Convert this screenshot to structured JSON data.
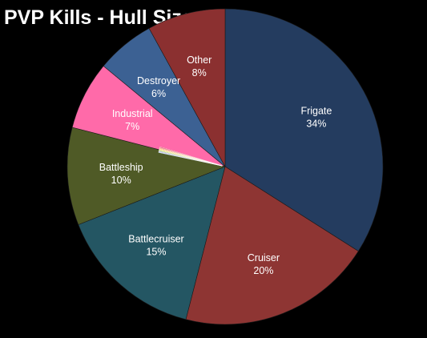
{
  "chart_data": {
    "type": "pie",
    "title": "PVP Kills - Hull Size",
    "categories": [
      "Frigate",
      "Cruiser",
      "Battlecruiser",
      "Battleship",
      "Industrial",
      "Destroyer",
      "Other"
    ],
    "values": [
      34,
      20,
      15,
      10,
      7,
      6,
      8
    ],
    "value_labels": [
      "34%",
      "20%",
      "15%",
      "10%",
      "7%",
      "6%",
      "8%"
    ],
    "colors": [
      "#243c5f",
      "#8e3533",
      "#245663",
      "#4f5a26",
      "#ff6aa9",
      "#3c6193",
      "#8b3030"
    ],
    "minor_slices_colors": [
      "#7fd3f2",
      "#a86bd8",
      "#6fb84a",
      "#c8e03a",
      "#ffd23a",
      "#ff9d2a",
      "#e8534a",
      "#c8202a"
    ],
    "start_angle": "top",
    "direction": "clockwise",
    "legend": "none",
    "labels_on_slices": true
  }
}
